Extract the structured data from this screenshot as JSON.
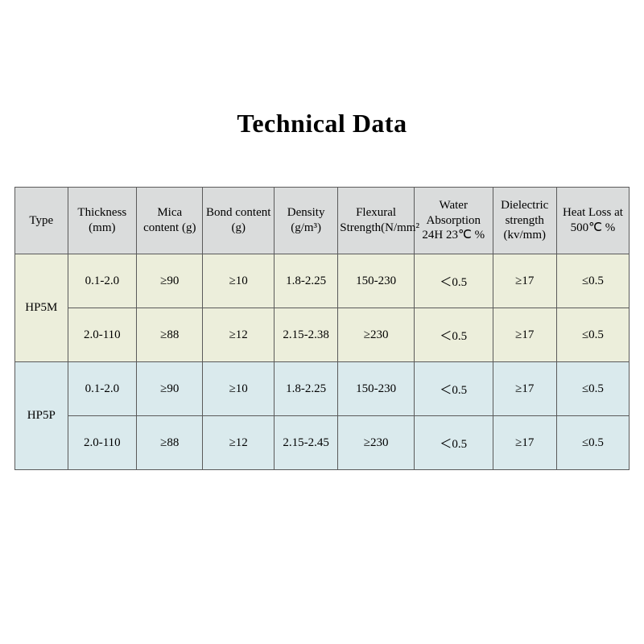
{
  "title": "Technical Data",
  "table": {
    "type": "table",
    "header_bg": "#dadcdc",
    "group1_bg": "#eceedb",
    "group2_bg": "#daeaed",
    "border_color": "#5a5a5a",
    "title_fontsize": 32,
    "header_fontsize": 15,
    "cell_fontsize": 15,
    "col_widths_pct": [
      8.6,
      11.2,
      10.8,
      11.6,
      10.4,
      12.4,
      12.8,
      10.4,
      11.8
    ],
    "columns": [
      "Type",
      "Thickness (mm)",
      "Mica content (g)",
      "Bond content (g)",
      "Density (g/m³)",
      "Flexural Strength(N/mm²",
      "Water Absorption 24H 23℃ %",
      "Dielectric strength (kv/mm)",
      "Heat Loss at 500℃ %"
    ],
    "groups": [
      {
        "type_label": "HP5M",
        "bg_key": "group1_bg",
        "rows": [
          [
            "0.1-2.0",
            "≥90",
            "≥10",
            "1.8-2.25",
            "150-230",
            "＜0.5",
            "≥17",
            "≤0.5"
          ],
          [
            "2.0-110",
            "≥88",
            "≥12",
            "2.15-2.38",
            "≥230",
            "＜0.5",
            "≥17",
            "≤0.5"
          ]
        ]
      },
      {
        "type_label": "HP5P",
        "bg_key": "group2_bg",
        "rows": [
          [
            "0.1-2.0",
            "≥90",
            "≥10",
            "1.8-2.25",
            "150-230",
            "＜0.5",
            "≥17",
            "≤0.5"
          ],
          [
            "2.0-110",
            "≥88",
            "≥12",
            "2.15-2.45",
            "≥230",
            "＜0.5",
            "≥17",
            "≤0.5"
          ]
        ]
      }
    ]
  }
}
